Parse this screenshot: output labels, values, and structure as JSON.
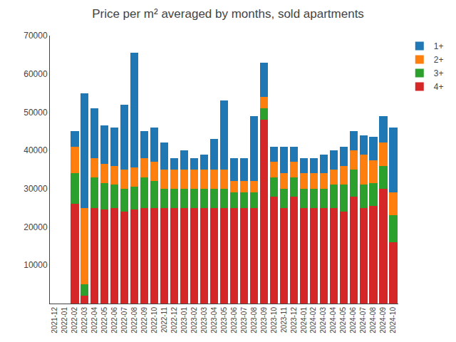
{
  "chart_data": {
    "type": "bar",
    "title": "Price per m² averaged by months, sold apartments",
    "stacked": true,
    "categories": [
      "2021-12",
      "2022-01",
      "2022-02",
      "2022-03",
      "2022-04",
      "2022-05",
      "2022-06",
      "2022-07",
      "2022-08",
      "2022-09",
      "2022-10",
      "2022-11",
      "2022-12",
      "2023-01",
      "2023-02",
      "2023-03",
      "2023-04",
      "2023-05",
      "2023-06",
      "2023-07",
      "2023-08",
      "2023-09",
      "2023-10",
      "2023-11",
      "2023-12",
      "2024-01",
      "2024-02",
      "2024-03",
      "2024-04",
      "2024-05",
      "2024-06",
      "2024-07",
      "2024-08",
      "2024-09",
      "2024-10"
    ],
    "series": [
      {
        "name": "4+",
        "color": "#d62728",
        "values": [
          0,
          0,
          26000,
          2000,
          25000,
          24500,
          25000,
          24000,
          24500,
          25000,
          25000,
          25000,
          25000,
          25000,
          25000,
          25000,
          25000,
          25000,
          25000,
          25000,
          25000,
          48000,
          28000,
          25000,
          28000,
          25000,
          25000,
          25000,
          25000,
          24000,
          28000,
          25000,
          25500,
          30000,
          16000
        ]
      },
      {
        "name": "3+",
        "color": "#2ca02c",
        "values": [
          0,
          0,
          8000,
          3000,
          8000,
          7000,
          6000,
          6000,
          6000,
          8000,
          7000,
          5000,
          5000,
          5000,
          5000,
          5000,
          5000,
          5000,
          4000,
          4000,
          4000,
          3000,
          5000,
          5000,
          5000,
          5000,
          5000,
          5000,
          6000,
          7000,
          7000,
          6000,
          6000,
          6000,
          7000
        ]
      },
      {
        "name": "2+",
        "color": "#ff7f0e",
        "values": [
          0,
          0,
          7000,
          20000,
          5000,
          5000,
          5000,
          5000,
          5000,
          5000,
          5000,
          5000,
          5000,
          5000,
          5000,
          5000,
          5000,
          5000,
          3000,
          3000,
          3000,
          3000,
          4000,
          4000,
          4000,
          4000,
          4000,
          4000,
          4000,
          5000,
          5000,
          8000,
          6000,
          6000,
          6000
        ]
      },
      {
        "name": "1+",
        "color": "#1f77b4",
        "values": [
          0,
          0,
          4000,
          30000,
          13000,
          10000,
          10000,
          17000,
          30000,
          7000,
          9000,
          7000,
          3000,
          5000,
          3000,
          4000,
          8000,
          18000,
          6000,
          6000,
          17000,
          9000,
          4000,
          7000,
          4000,
          4000,
          4000,
          5000,
          5000,
          5000,
          5000,
          5000,
          6000,
          7000,
          17000
        ]
      }
    ],
    "ylim": [
      0,
      70000
    ],
    "yticks": [
      10000,
      20000,
      30000,
      40000,
      50000,
      60000,
      70000
    ],
    "grid": false,
    "legend": "upper right"
  }
}
